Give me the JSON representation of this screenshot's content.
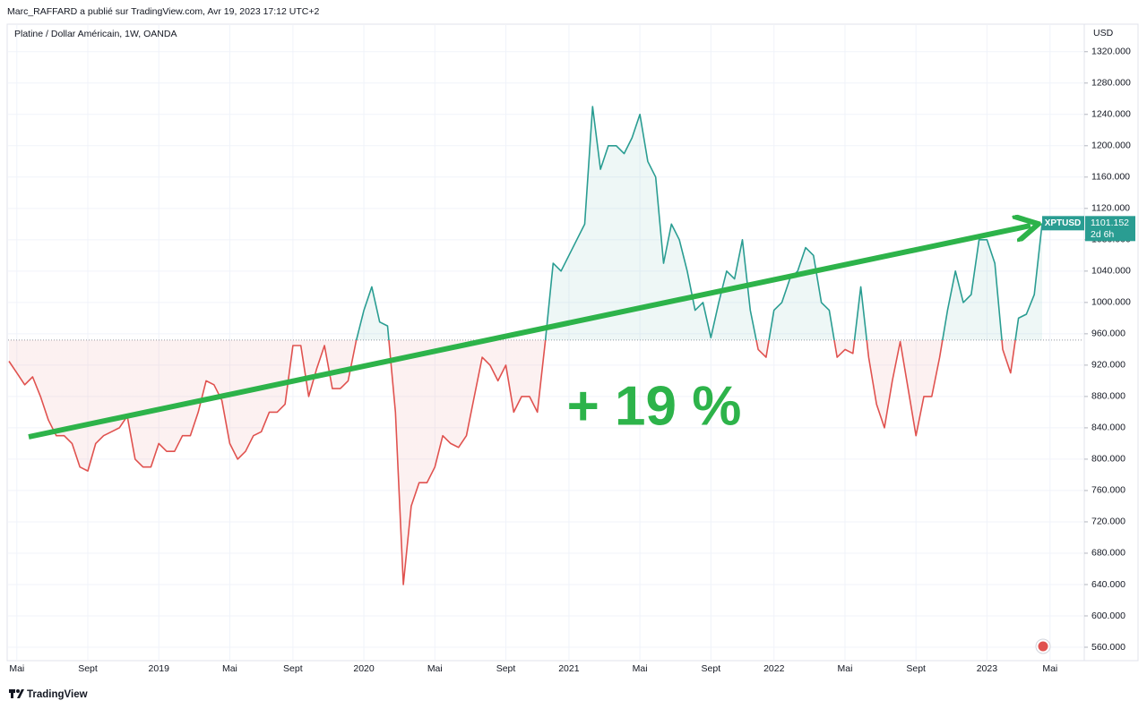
{
  "header": "Marc_RAFFARD a publié sur TradingView.com, Avr 19, 2023 17:12 UTC+2",
  "footer": "TradingView",
  "chart_data": {
    "type": "line",
    "title": "Platine / Dollar Américain, 1W, OANDA",
    "y_axis_label": "USD",
    "annotation": "+ 19 %",
    "symbol": "XPTUSD",
    "countdown": "2d 6h",
    "baseline": 952,
    "up_color": "#2a9d92",
    "down_color": "#e0524f",
    "grid": true,
    "categories": [
      null,
      "Mai",
      null,
      null,
      null,
      null,
      null,
      null,
      null,
      null,
      "Sept",
      null,
      null,
      null,
      null,
      null,
      null,
      null,
      null,
      "2019",
      null,
      null,
      null,
      null,
      null,
      null,
      null,
      null,
      "Mai",
      null,
      null,
      null,
      null,
      null,
      null,
      null,
      "Sept",
      null,
      null,
      null,
      null,
      null,
      null,
      null,
      null,
      "2020",
      null,
      null,
      null,
      null,
      null,
      null,
      null,
      null,
      "Mai",
      null,
      null,
      null,
      null,
      null,
      null,
      null,
      null,
      "Sept",
      null,
      null,
      null,
      null,
      null,
      null,
      null,
      "2021",
      null,
      null,
      null,
      null,
      null,
      null,
      null,
      null,
      "Mai",
      null,
      null,
      null,
      null,
      null,
      null,
      null,
      null,
      "Sept",
      null,
      null,
      null,
      null,
      null,
      null,
      null,
      "2022",
      null,
      null,
      null,
      null,
      null,
      null,
      null,
      null,
      "Mai",
      null,
      null,
      null,
      null,
      null,
      null,
      null,
      null,
      "Sept",
      null,
      null,
      null,
      null,
      null,
      null,
      null,
      null,
      "2023",
      null,
      null,
      null,
      null,
      null,
      null,
      null,
      "Mai",
      null
    ],
    "series": [
      {
        "name": "XPTUSD",
        "values": [
          925,
          910,
          895,
          905,
          880,
          850,
          830,
          830,
          820,
          790,
          785,
          820,
          830,
          835,
          840,
          855,
          800,
          790,
          790,
          820,
          810,
          810,
          830,
          830,
          860,
          900,
          895,
          875,
          820,
          800,
          810,
          830,
          835,
          860,
          860,
          870,
          945,
          945,
          880,
          915,
          945,
          890,
          890,
          900,
          950,
          990,
          1020,
          975,
          970,
          860,
          640,
          740,
          770,
          770,
          790,
          830,
          820,
          815,
          830,
          880,
          930,
          920,
          900,
          920,
          860,
          880,
          880,
          860,
          950,
          1050,
          1040,
          1060,
          1080,
          1100,
          1250,
          1170,
          1200,
          1200,
          1190,
          1210,
          1240,
          1180,
          1160,
          1050,
          1100,
          1080,
          1040,
          990,
          1000,
          955,
          1000,
          1040,
          1030,
          1080,
          990,
          940,
          930,
          990,
          1000,
          1030,
          1040,
          1070,
          1060,
          1000,
          990,
          930,
          940,
          935,
          1020,
          930,
          870,
          840,
          900,
          950,
          890,
          830,
          880,
          880,
          930,
          990,
          1040,
          1000,
          1010,
          1080,
          1080,
          1050,
          940,
          910,
          980,
          985,
          1010,
          1101.152,
          null,
          null
        ]
      }
    ],
    "ylim": [
      544,
      1354
    ],
    "yticks": [
      {
        "value": 560,
        "label": "560.000"
      },
      {
        "value": 600,
        "label": "600.000"
      },
      {
        "value": 640,
        "label": "640.000"
      },
      {
        "value": 680,
        "label": "680.000"
      },
      {
        "value": 720,
        "label": "720.000"
      },
      {
        "value": 760,
        "label": "760.000"
      },
      {
        "value": 800,
        "label": "800.000"
      },
      {
        "value": 840,
        "label": "840.000"
      },
      {
        "value": 880,
        "label": "880.000"
      },
      {
        "value": 920,
        "label": "920.000"
      },
      {
        "value": 960,
        "label": "960.000"
      },
      {
        "value": 1000,
        "label": "1000.000"
      },
      {
        "value": 1040,
        "label": "1040.000"
      },
      {
        "value": 1080,
        "label": "1080.000"
      },
      {
        "value": 1120,
        "label": "1120.000"
      },
      {
        "value": 1160,
        "label": "1160.000"
      },
      {
        "value": 1200,
        "label": "1200.000"
      },
      {
        "value": 1240,
        "label": "1240.000"
      },
      {
        "value": 1280,
        "label": "1280.000"
      },
      {
        "value": 1320,
        "label": "1320.000"
      }
    ]
  }
}
